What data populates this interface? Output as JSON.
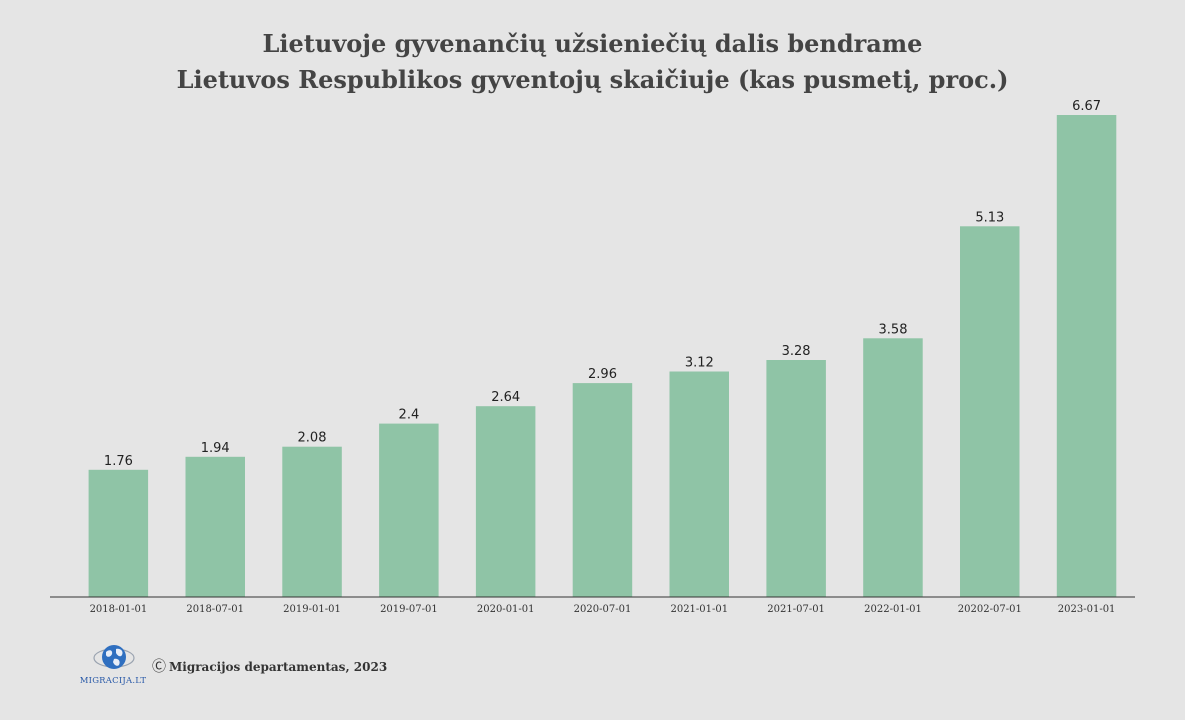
{
  "title_lines": [
    "Lietuvoje gyvenančių užsieniečių dalis bendrame",
    "Lietuvos Respublikos gyventojų skaičiuje (kas pusmetį, proc.)"
  ],
  "chart_data": {
    "type": "bar",
    "title": "Lietuvoje gyvenančių užsieniečių dalis bendrame Lietuvos Respublikos gyventojų skaičiuje (kas pusmetį, proc.)",
    "categories": [
      "2018-01-01",
      "2018-07-01",
      "2019-01-01",
      "2019-07-01",
      "2020-01-01",
      "2020-07-01",
      "2021-01-01",
      "2021-07-01",
      "2022-01-01",
      "20202-07-01",
      "2023-01-01"
    ],
    "values": [
      1.76,
      1.94,
      2.08,
      2.4,
      2.64,
      2.96,
      3.12,
      3.28,
      3.58,
      5.13,
      6.67
    ],
    "value_labels": [
      "1.76",
      "1.94",
      "2.08",
      "2.4",
      "2.64",
      "2.96",
      "3.12",
      "3.28",
      "3.58",
      "5.13",
      "6.67"
    ],
    "xlabel": "",
    "ylabel": "",
    "ylim": [
      0,
      6.67
    ],
    "grid": false,
    "legend": "none",
    "bar_color": "#8fc4a6",
    "axis_color": "#333333"
  },
  "footer": {
    "logo_text": "MIGRACIJA.LT",
    "logo_icon": "globe-icon",
    "copyright_symbol": "Ⓒ",
    "copyright_text": "Migracijos departamentas, 2023"
  }
}
